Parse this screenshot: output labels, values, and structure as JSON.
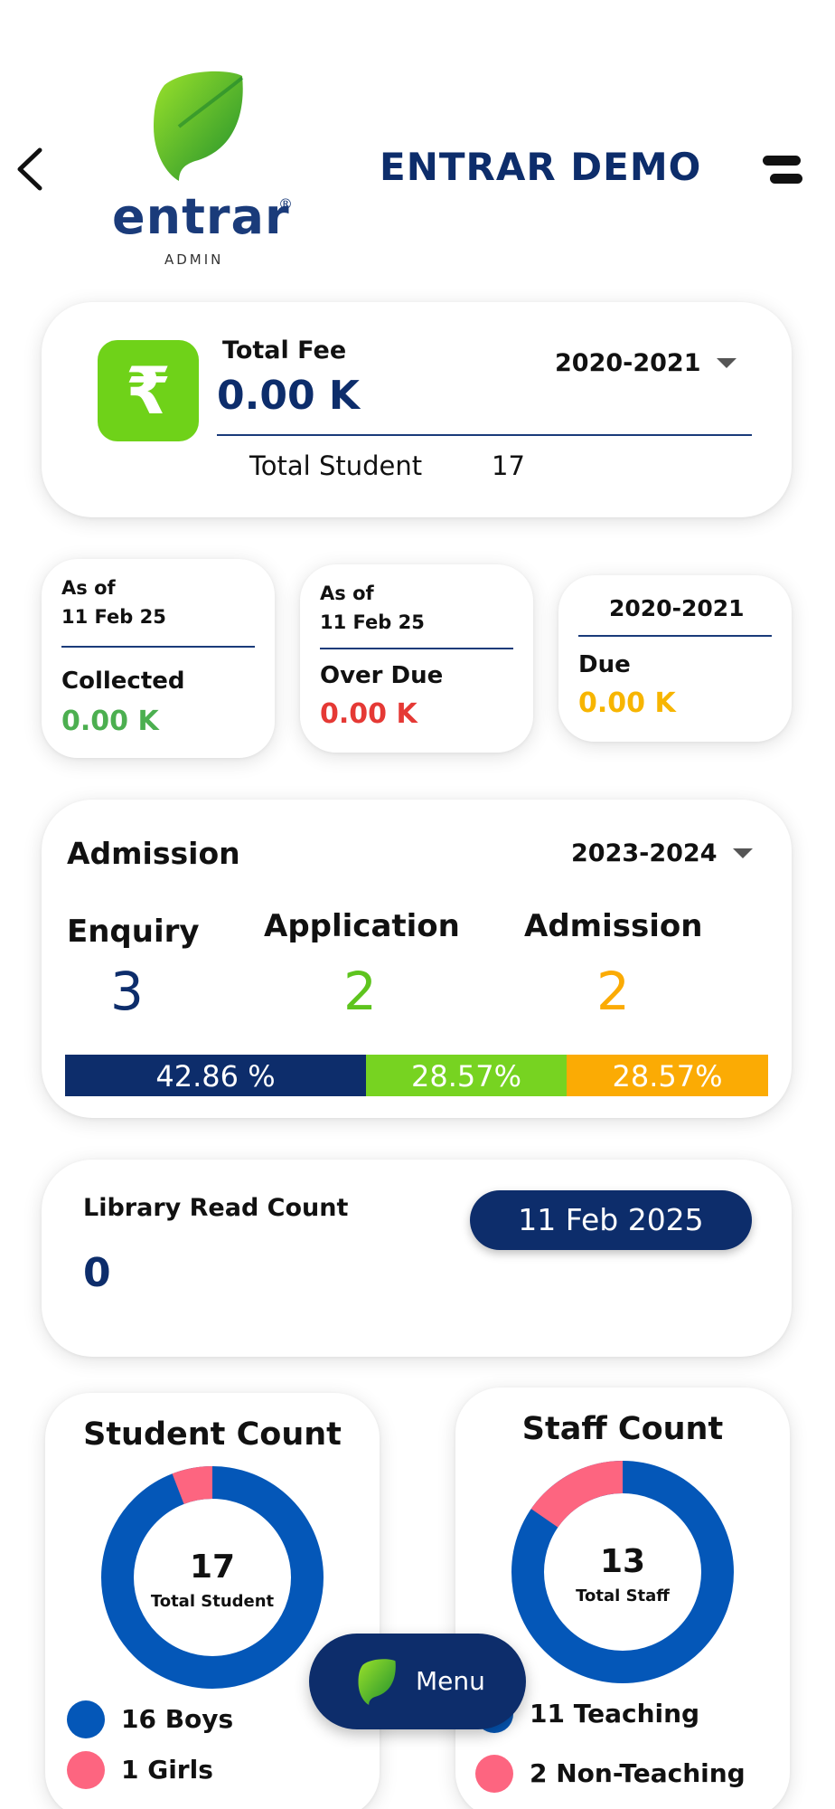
{
  "header": {
    "title": "ENTRAR DEMO",
    "logo_word": "entrar",
    "logo_sub": "ADMIN",
    "logo_reg": "®"
  },
  "fee": {
    "label": "Total Fee",
    "value": "0.00 K",
    "year": "2020-2021",
    "total_student_label": "Total Student",
    "total_student_value": "17",
    "currency_symbol": "₹"
  },
  "collected": {
    "as_of": "As of",
    "date": "11 Feb 25",
    "label": "Collected",
    "value": "0.00 K",
    "color": "#4caf50"
  },
  "overdue": {
    "as_of": "As of",
    "date": "11 Feb 25",
    "label": "Over Due",
    "value": "0.00 K",
    "color": "#e53935"
  },
  "due": {
    "year": "2020-2021",
    "label": "Due",
    "value": "0.00 K",
    "color": "#f7b500"
  },
  "admission": {
    "title": "Admission",
    "year": "2023-2024",
    "enquiry_label": "Enquiry",
    "enquiry_value": "3",
    "application_label": "Application",
    "application_value": "2",
    "admission_label": "Admission",
    "admission_value": "2",
    "bar": [
      {
        "label": "42.86 %",
        "percent": 42.86,
        "color": "#0d2d6b"
      },
      {
        "label": "28.57%",
        "percent": 28.57,
        "color": "#77d321"
      },
      {
        "label": "28.57%",
        "percent": 28.57,
        "color": "#fbab04"
      }
    ]
  },
  "library": {
    "label": "Library Read Count",
    "value": "0",
    "date": "11 Feb 2025"
  },
  "student_count": {
    "title": "Student Count",
    "total": "17",
    "total_label": "Total Student",
    "boys_label": "16 Boys",
    "girls_label": "1 Girls",
    "boys": 16,
    "girls": 1,
    "boys_color": "#0457b8",
    "girls_color": "#fd6580"
  },
  "staff_count": {
    "title": "Staff Count",
    "total": "13",
    "total_label": "Total Staff",
    "teaching_label": "11 Teaching",
    "non_teaching_label": "2 Non-Teaching",
    "teaching": 11,
    "non_teaching": 2,
    "teaching_color": "#0457b8",
    "non_teaching_color": "#fd6580"
  },
  "menu": {
    "label": "Menu"
  },
  "icons": {
    "back": "back-arrow-icon",
    "menu": "hamburger-icon",
    "rupee": "rupee-icon",
    "dropdown": "chevron-down-icon",
    "leaf": "leaf-logo-icon"
  }
}
